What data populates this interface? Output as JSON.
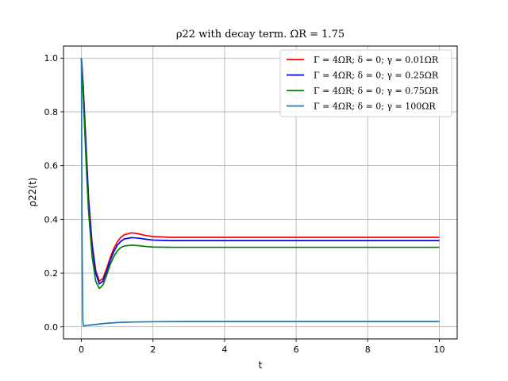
{
  "chart_data": {
    "type": "line",
    "title": "ρ22 with decay term. ΩR = 1.75",
    "xlabel": "t",
    "ylabel": "ρ22(t)",
    "xlim": [
      -0.5,
      10.5
    ],
    "ylim": [
      -0.045,
      1.045
    ],
    "x_ticks": [
      0,
      2,
      4,
      6,
      8,
      10
    ],
    "x_tick_labels": [
      "0",
      "2",
      "4",
      "6",
      "8",
      "10"
    ],
    "y_ticks": [
      0.0,
      0.2,
      0.4,
      0.6,
      0.8,
      1.0
    ],
    "y_tick_labels": [
      "0.0",
      "0.2",
      "0.4",
      "0.6",
      "0.8",
      "1.0"
    ],
    "grid": true,
    "legend_position": "top-right",
    "series": [
      {
        "name": "Γ = 4ΩR; δ = 0; γ = 0.01ΩR",
        "color": "#ff0000",
        "x": [
          0,
          0.05,
          0.1,
          0.15,
          0.2,
          0.3,
          0.4,
          0.5,
          0.6,
          0.7,
          0.8,
          0.9,
          1.0,
          1.1,
          1.2,
          1.4,
          1.6,
          1.8,
          2.0,
          2.5,
          3,
          4,
          5,
          6,
          7,
          8,
          9,
          10
        ],
        "y": [
          1.0,
          0.9,
          0.76,
          0.62,
          0.48,
          0.31,
          0.21,
          0.17,
          0.18,
          0.215,
          0.255,
          0.29,
          0.315,
          0.333,
          0.343,
          0.35,
          0.346,
          0.34,
          0.336,
          0.333,
          0.333,
          0.333,
          0.333,
          0.333,
          0.333,
          0.333,
          0.333,
          0.333
        ]
      },
      {
        "name": "Γ = 4ΩR; δ = 0; γ = 0.25ΩR",
        "color": "#0000ff",
        "x": [
          0,
          0.05,
          0.1,
          0.15,
          0.2,
          0.3,
          0.4,
          0.5,
          0.6,
          0.7,
          0.8,
          0.9,
          1.0,
          1.1,
          1.2,
          1.4,
          1.6,
          1.8,
          2.0,
          2.5,
          3,
          4,
          5,
          6,
          7,
          8,
          9,
          10
        ],
        "y": [
          1.0,
          0.89,
          0.75,
          0.61,
          0.47,
          0.3,
          0.2,
          0.16,
          0.17,
          0.205,
          0.245,
          0.278,
          0.303,
          0.318,
          0.327,
          0.332,
          0.33,
          0.326,
          0.323,
          0.321,
          0.321,
          0.321,
          0.321,
          0.321,
          0.321,
          0.321,
          0.321,
          0.321
        ]
      },
      {
        "name": "Γ = 4ΩR; δ = 0; γ = 0.75ΩR",
        "color": "#008000",
        "x": [
          0,
          0.05,
          0.1,
          0.15,
          0.2,
          0.3,
          0.4,
          0.5,
          0.6,
          0.7,
          0.8,
          0.9,
          1.0,
          1.1,
          1.2,
          1.4,
          1.6,
          1.8,
          2.0,
          2.5,
          3,
          4,
          5,
          6,
          7,
          8,
          9,
          10
        ],
        "y": [
          1.0,
          0.86,
          0.71,
          0.56,
          0.43,
          0.26,
          0.17,
          0.143,
          0.155,
          0.19,
          0.23,
          0.26,
          0.282,
          0.295,
          0.301,
          0.304,
          0.302,
          0.299,
          0.297,
          0.296,
          0.296,
          0.296,
          0.296,
          0.296,
          0.296,
          0.296,
          0.296,
          0.296
        ]
      },
      {
        "name": "Γ = 4ΩR; δ = 0; γ = 100ΩR",
        "color": "#1f77b4",
        "x": [
          0,
          0.02,
          0.04,
          0.06,
          0.1,
          0.2,
          0.4,
          0.6,
          0.8,
          1.0,
          1.2,
          1.5,
          2,
          3,
          4,
          5,
          6,
          7,
          8,
          9,
          10
        ],
        "y": [
          1.0,
          0.3,
          0.02,
          0.003,
          0.004,
          0.006,
          0.009,
          0.012,
          0.014,
          0.016,
          0.017,
          0.018,
          0.019,
          0.02,
          0.02,
          0.02,
          0.02,
          0.02,
          0.02,
          0.02,
          0.02
        ]
      }
    ]
  }
}
